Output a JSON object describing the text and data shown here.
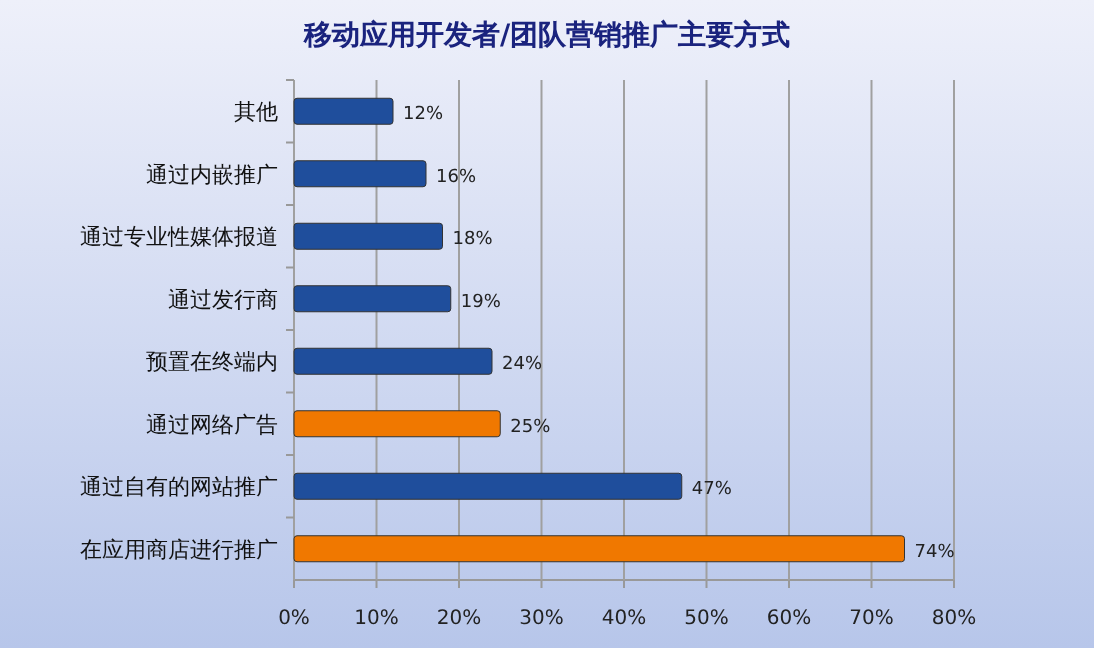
{
  "chart_data": {
    "type": "bar",
    "orientation": "horizontal",
    "title": "移动应用开发者/团队营销推广主要方式",
    "categories": [
      "其他",
      "通过内嵌推广",
      "通过专业性媒体报道",
      "通过发行商",
      "预置在终端内",
      "通过网络广告",
      "通过自有的网站推广",
      "在应用商店进行推广"
    ],
    "values": [
      12,
      16,
      18,
      19,
      24,
      25,
      47,
      74
    ],
    "value_labels": [
      "12%",
      "16%",
      "18%",
      "19%",
      "24%",
      "25%",
      "47%",
      "74%"
    ],
    "colors": [
      "#1f4e9c",
      "#1f4e9c",
      "#1f4e9c",
      "#1f4e9c",
      "#1f4e9c",
      "#f07800",
      "#1f4e9c",
      "#f07800"
    ],
    "xlim": [
      0,
      80
    ],
    "xticks": [
      {
        "value": 0,
        "label": "0%"
      },
      {
        "value": 10,
        "label": "10%"
      },
      {
        "value": 20,
        "label": "20%"
      },
      {
        "value": 30,
        "label": "30%"
      },
      {
        "value": 40,
        "label": "40%"
      },
      {
        "value": 50,
        "label": "50%"
      },
      {
        "value": 60,
        "label": "60%"
      },
      {
        "value": 70,
        "label": "70%"
      },
      {
        "value": 80,
        "label": "80%"
      }
    ],
    "grid": "x"
  }
}
